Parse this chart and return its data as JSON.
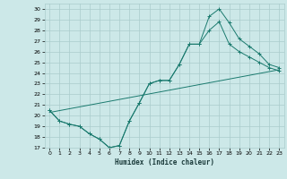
{
  "xlabel": "Humidex (Indice chaleur)",
  "bg_color": "#cce8e8",
  "grid_color": "#aacccc",
  "line_color": "#1a7a6e",
  "xlim": [
    -0.5,
    23.5
  ],
  "ylim": [
    17,
    30.5
  ],
  "xticks": [
    0,
    1,
    2,
    3,
    4,
    5,
    6,
    7,
    8,
    9,
    10,
    11,
    12,
    13,
    14,
    15,
    16,
    17,
    18,
    19,
    20,
    21,
    22,
    23
  ],
  "yticks": [
    17,
    18,
    19,
    20,
    21,
    22,
    23,
    24,
    25,
    26,
    27,
    28,
    29,
    30
  ],
  "line1_x": [
    0,
    1,
    2,
    3,
    4,
    5,
    6,
    7,
    8,
    9,
    10,
    11,
    12,
    13,
    14,
    15,
    16,
    17,
    18,
    19,
    20,
    21,
    22,
    23
  ],
  "line1_y": [
    20.5,
    19.5,
    19.2,
    19.0,
    18.3,
    17.8,
    17.0,
    17.2,
    19.5,
    21.2,
    23.0,
    23.3,
    23.3,
    24.8,
    26.7,
    26.7,
    29.3,
    30.0,
    28.7,
    27.2,
    26.5,
    25.8,
    24.8,
    24.5
  ],
  "line2_x": [
    0,
    1,
    2,
    3,
    4,
    5,
    6,
    7,
    8,
    9,
    10,
    11,
    12,
    13,
    14,
    15,
    16,
    17,
    18,
    19,
    20,
    21,
    22,
    23
  ],
  "line2_y": [
    20.5,
    19.5,
    19.2,
    19.0,
    18.3,
    17.8,
    17.0,
    17.2,
    19.5,
    21.2,
    23.0,
    23.3,
    23.3,
    24.8,
    26.7,
    26.7,
    28.0,
    28.8,
    26.7,
    26.0,
    25.5,
    25.0,
    24.5,
    24.2
  ],
  "line3_x": [
    0,
    23
  ],
  "line3_y": [
    20.3,
    24.3
  ]
}
